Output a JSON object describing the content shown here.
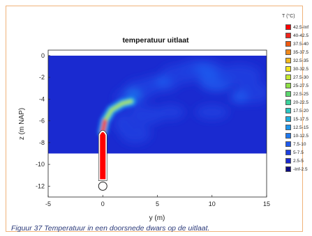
{
  "caption": "Figuur 37 Temperatuur in een doorsnede dwars op de uitlaat.",
  "chart_data": {
    "type": "heatmap",
    "title": "temperatuur uitlaat",
    "xlabel": "y (m)",
    "ylabel": "z (m NAP)",
    "xlim": [
      -5,
      15
    ],
    "ylim": [
      -13,
      0.5
    ],
    "xticks": [
      -5,
      0,
      5,
      10,
      15
    ],
    "yticks": [
      0,
      -2,
      -4,
      -6,
      -8,
      -10,
      -12
    ],
    "legend_title": "T (°C)",
    "legend_position": "right",
    "legend": [
      {
        "label": "42.5-Inf",
        "color": "#ff0000"
      },
      {
        "label": "40-42.5",
        "color": "#f0241c"
      },
      {
        "label": "37.5-40",
        "color": "#f05a10"
      },
      {
        "label": "35-37.5",
        "color": "#f08a1c"
      },
      {
        "label": "32.5-35",
        "color": "#f2b81c"
      },
      {
        "label": "30-32.5",
        "color": "#f4e61c"
      },
      {
        "label": "27.5-30",
        "color": "#c6ea30"
      },
      {
        "label": "25-27.5",
        "color": "#8ee046"
      },
      {
        "label": "22.5-25",
        "color": "#5cd86e"
      },
      {
        "label": "20-22.5",
        "color": "#3cd29c"
      },
      {
        "label": "17.5-20",
        "color": "#2ac6c4"
      },
      {
        "label": "15-17.5",
        "color": "#1eaee0"
      },
      {
        "label": "12.5-15",
        "color": "#1e94ec"
      },
      {
        "label": "10-12.5",
        "color": "#1e78ee"
      },
      {
        "label": "7.5-10",
        "color": "#1e5aee"
      },
      {
        "label": "5-7.5",
        "color": "#1c40e0"
      },
      {
        "label": "2.5-5",
        "color": "#1a2ad0"
      },
      {
        "label": "-Inf-2.5",
        "color": "#0c0c80"
      }
    ],
    "domain_extent": {
      "y": [
        -5,
        15
      ],
      "z": [
        -9,
        0
      ]
    },
    "plume_path": [
      [
        0,
        -7
      ],
      [
        0.2,
        -6
      ],
      [
        0.8,
        -5
      ],
      [
        1.8,
        -4.4
      ],
      [
        2.6,
        -4.2
      ]
    ],
    "outlet_pipe": {
      "y": 0,
      "z_top": -7,
      "z_bottom": -11.5,
      "circle_z": -12
    }
  }
}
